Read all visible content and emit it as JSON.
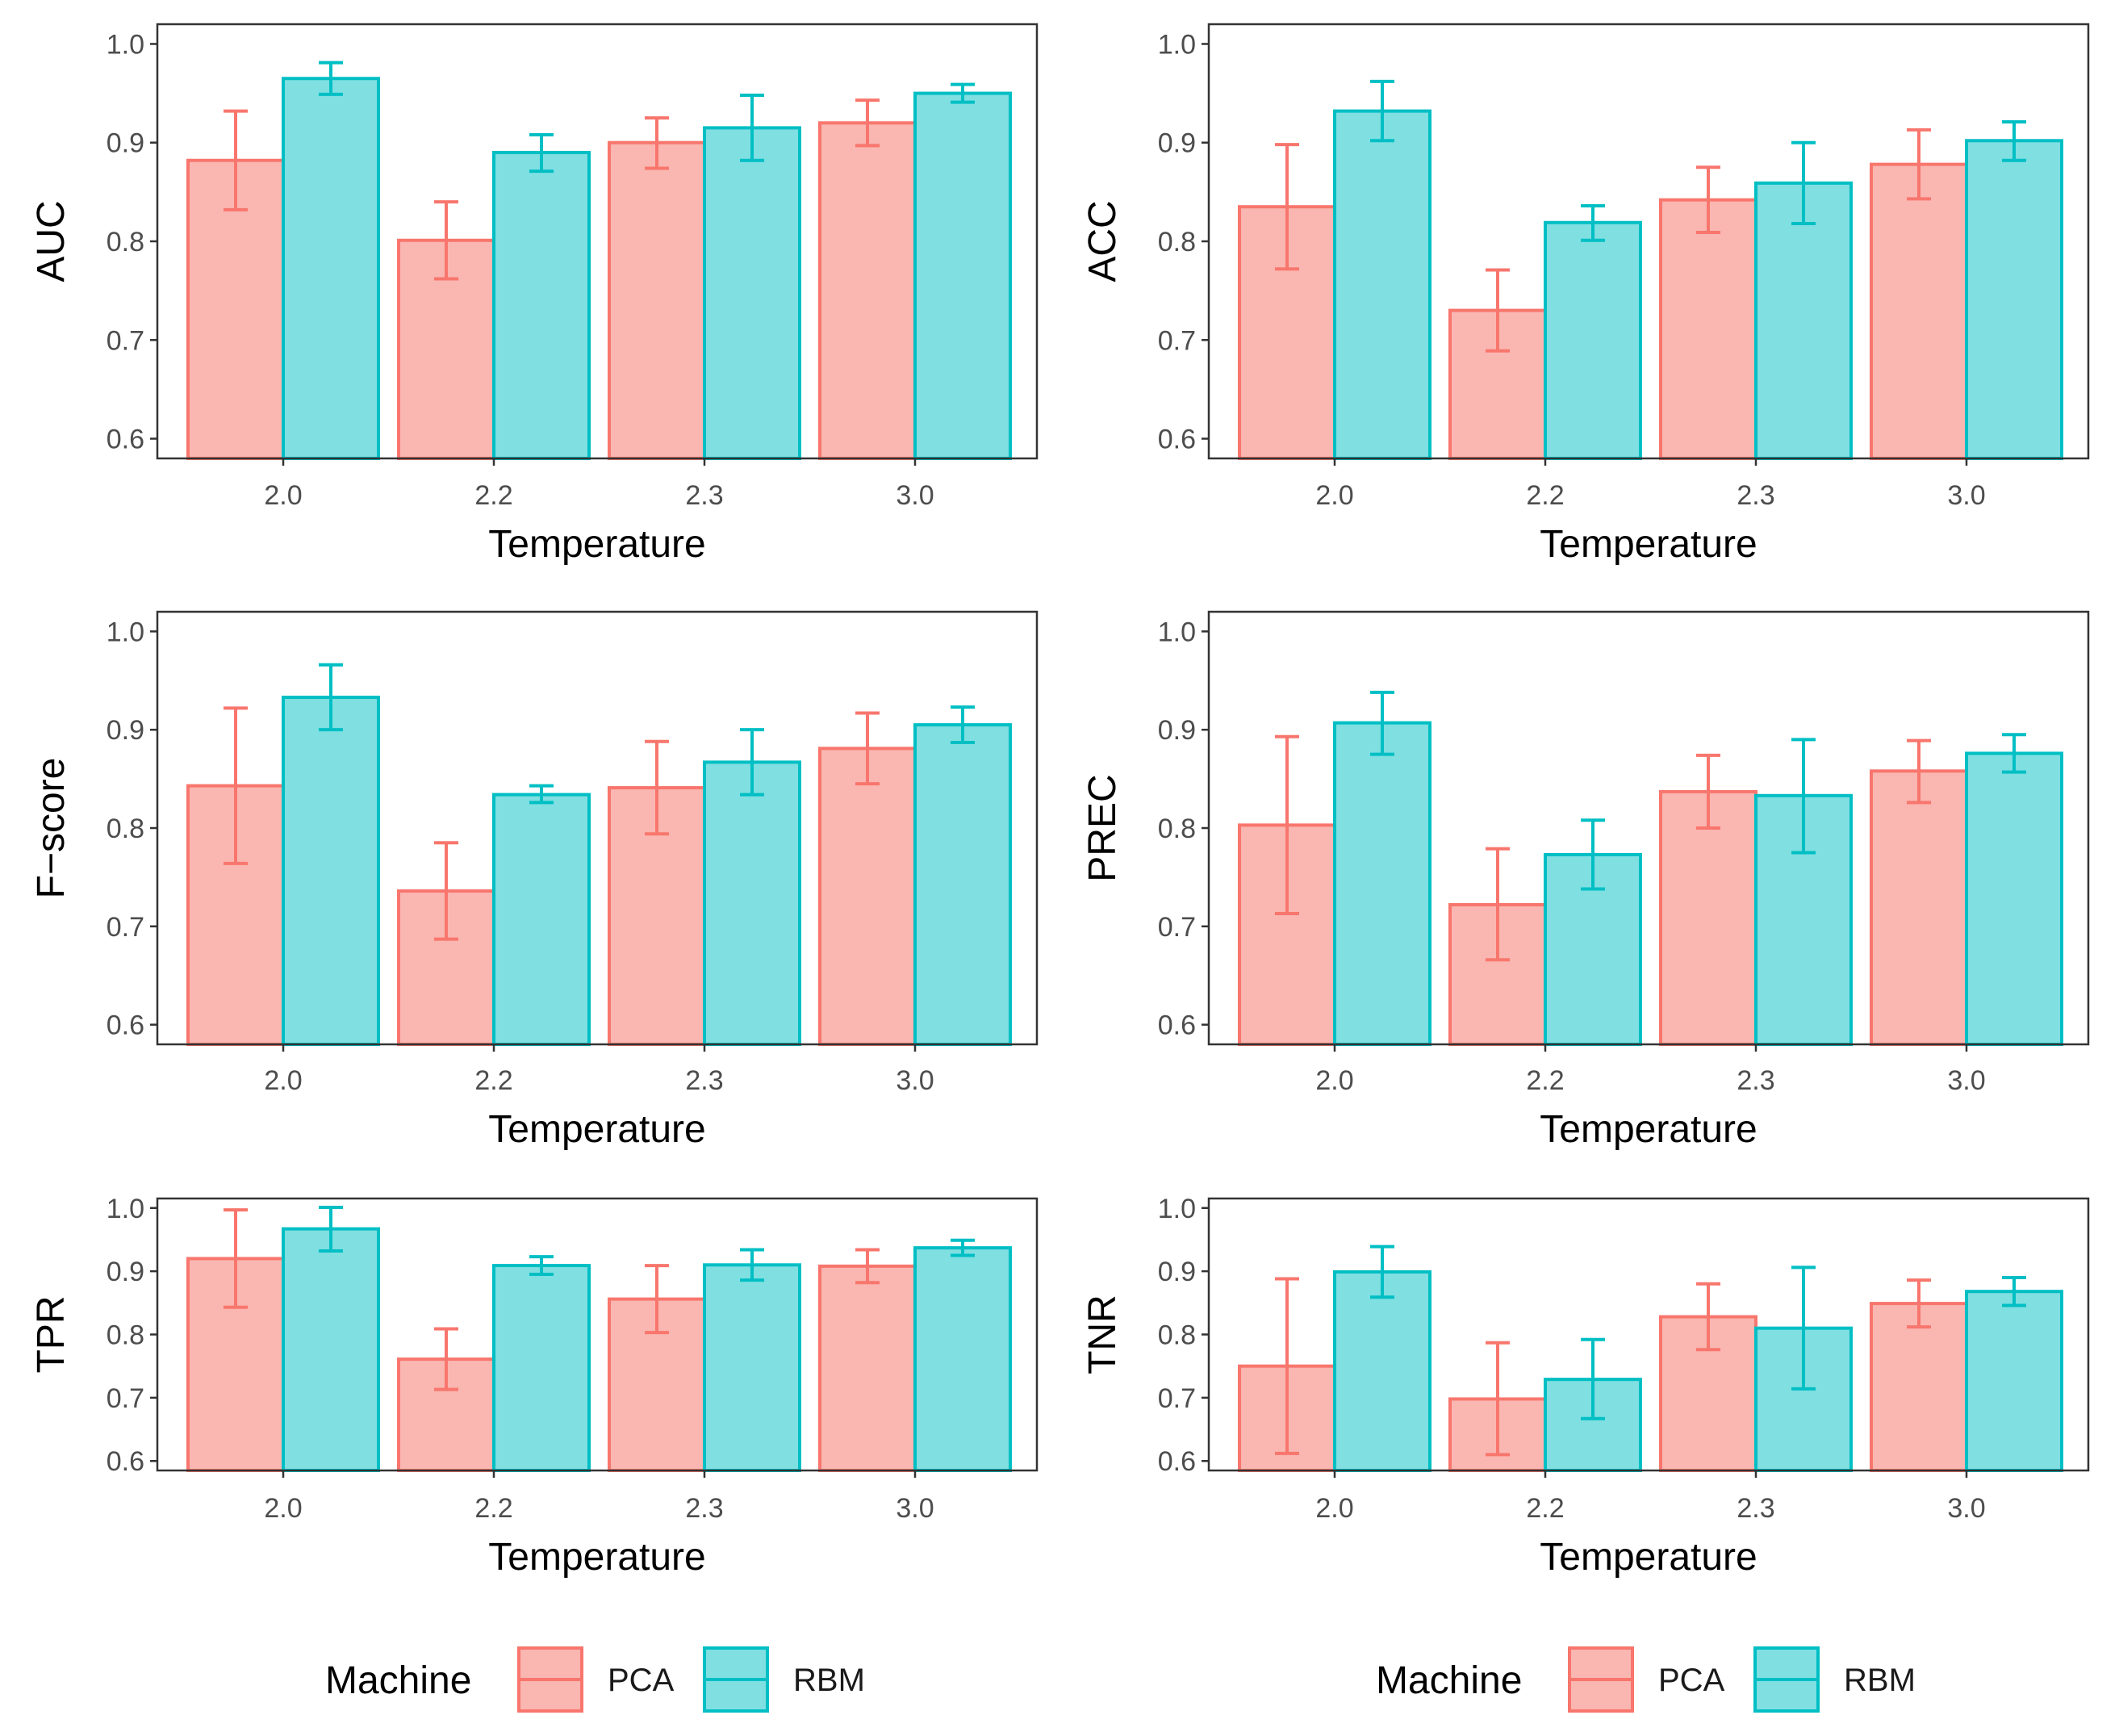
{
  "colors": {
    "pca_stroke": "#F8766D",
    "pca_fill": "#FAB6B1",
    "rbm_stroke": "#00BFC4",
    "rbm_fill": "#7FDFE1",
    "panel_border": "#333333",
    "tick": "#333333"
  },
  "legend": {
    "title": "Machine",
    "items": [
      {
        "label": "PCA",
        "color_key": "pca"
      },
      {
        "label": "RBM",
        "color_key": "rbm"
      }
    ]
  },
  "chart_data": [
    {
      "type": "bar",
      "ylabel": "AUC",
      "xlabel": "Temperature",
      "categories": [
        "2.0",
        "2.2",
        "2.3",
        "3.0"
      ],
      "ylim": [
        0.58,
        1.02
      ],
      "yticks": [
        "0.6",
        "0.7",
        "0.8",
        "0.9",
        "1.0"
      ],
      "series": [
        {
          "name": "PCA",
          "values": [
            0.882,
            0.801,
            0.9,
            0.92
          ],
          "err_low": [
            0.832,
            0.762,
            0.874,
            0.897
          ],
          "err_high": [
            0.932,
            0.84,
            0.925,
            0.943
          ]
        },
        {
          "name": "RBM",
          "values": [
            0.965,
            0.89,
            0.915,
            0.95
          ],
          "err_low": [
            0.949,
            0.871,
            0.882,
            0.941
          ],
          "err_high": [
            0.981,
            0.908,
            0.948,
            0.959
          ]
        }
      ]
    },
    {
      "type": "bar",
      "ylabel": "ACC",
      "xlabel": "Temperature",
      "categories": [
        "2.0",
        "2.2",
        "2.3",
        "3.0"
      ],
      "ylim": [
        0.58,
        1.02
      ],
      "yticks": [
        "0.6",
        "0.7",
        "0.8",
        "0.9",
        "1.0"
      ],
      "series": [
        {
          "name": "PCA",
          "values": [
            0.835,
            0.73,
            0.842,
            0.878
          ],
          "err_low": [
            0.772,
            0.689,
            0.809,
            0.843
          ],
          "err_high": [
            0.898,
            0.771,
            0.875,
            0.913
          ]
        },
        {
          "name": "RBM",
          "values": [
            0.932,
            0.819,
            0.859,
            0.902
          ],
          "err_low": [
            0.902,
            0.801,
            0.818,
            0.882
          ],
          "err_high": [
            0.962,
            0.836,
            0.9,
            0.921
          ]
        }
      ]
    },
    {
      "type": "bar",
      "ylabel": "F−score",
      "xlabel": "Temperature",
      "categories": [
        "2.0",
        "2.2",
        "2.3",
        "3.0"
      ],
      "ylim": [
        0.58,
        1.02
      ],
      "yticks": [
        "0.6",
        "0.7",
        "0.8",
        "0.9",
        "1.0"
      ],
      "series": [
        {
          "name": "PCA",
          "values": [
            0.843,
            0.736,
            0.841,
            0.881
          ],
          "err_low": [
            0.764,
            0.687,
            0.794,
            0.845
          ],
          "err_high": [
            0.922,
            0.785,
            0.888,
            0.917
          ]
        },
        {
          "name": "RBM",
          "values": [
            0.933,
            0.834,
            0.867,
            0.905
          ],
          "err_low": [
            0.9,
            0.826,
            0.834,
            0.887
          ],
          "err_high": [
            0.966,
            0.843,
            0.9,
            0.923
          ]
        }
      ]
    },
    {
      "type": "bar",
      "ylabel": "PREC",
      "xlabel": "Temperature",
      "categories": [
        "2.0",
        "2.2",
        "2.3",
        "3.0"
      ],
      "ylim": [
        0.58,
        1.02
      ],
      "yticks": [
        "0.6",
        "0.7",
        "0.8",
        "0.9",
        "1.0"
      ],
      "series": [
        {
          "name": "PCA",
          "values": [
            0.803,
            0.722,
            0.837,
            0.858
          ],
          "err_low": [
            0.713,
            0.666,
            0.8,
            0.826
          ],
          "err_high": [
            0.893,
            0.779,
            0.874,
            0.889
          ]
        },
        {
          "name": "RBM",
          "values": [
            0.907,
            0.773,
            0.833,
            0.876
          ],
          "err_low": [
            0.875,
            0.738,
            0.775,
            0.857
          ],
          "err_high": [
            0.938,
            0.808,
            0.89,
            0.895
          ]
        }
      ]
    },
    {
      "type": "bar",
      "ylabel": "TPR",
      "xlabel": "Temperature",
      "categories": [
        "2.0",
        "2.2",
        "2.3",
        "3.0"
      ],
      "ylim": [
        0.585,
        1.015
      ],
      "yticks": [
        "0.6",
        "0.7",
        "0.8",
        "0.9",
        "1.0"
      ],
      "series": [
        {
          "name": "PCA",
          "values": [
            0.92,
            0.761,
            0.856,
            0.908
          ],
          "err_low": [
            0.843,
            0.713,
            0.803,
            0.882
          ],
          "err_high": [
            0.997,
            0.809,
            0.909,
            0.934
          ]
        },
        {
          "name": "RBM",
          "values": [
            0.967,
            0.909,
            0.91,
            0.937
          ],
          "err_low": [
            0.932,
            0.895,
            0.886,
            0.925
          ],
          "err_high": [
            1.001,
            0.923,
            0.934,
            0.949
          ]
        }
      ]
    },
    {
      "type": "bar",
      "ylabel": "TNR",
      "xlabel": "Temperature",
      "categories": [
        "2.0",
        "2.2",
        "2.3",
        "3.0"
      ],
      "ylim": [
        0.585,
        1.015
      ],
      "yticks": [
        "0.6",
        "0.7",
        "0.8",
        "0.9",
        "1.0"
      ],
      "series": [
        {
          "name": "PCA",
          "values": [
            0.75,
            0.698,
            0.828,
            0.849
          ],
          "err_low": [
            0.612,
            0.61,
            0.776,
            0.812
          ],
          "err_high": [
            0.888,
            0.787,
            0.88,
            0.886
          ]
        },
        {
          "name": "RBM",
          "values": [
            0.899,
            0.729,
            0.81,
            0.868
          ],
          "err_low": [
            0.859,
            0.667,
            0.714,
            0.846
          ],
          "err_high": [
            0.939,
            0.792,
            0.906,
            0.89
          ]
        }
      ]
    }
  ]
}
